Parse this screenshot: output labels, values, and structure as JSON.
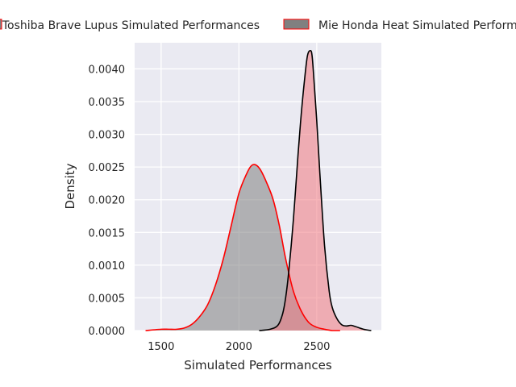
{
  "chart_data": {
    "type": "area",
    "title": "",
    "xlabel": "Simulated Performances",
    "ylabel": "Density",
    "xlim": [
      1330,
      2915
    ],
    "ylim": [
      0,
      0.0044
    ],
    "x_ticks": [
      1500,
      2000,
      2500
    ],
    "x_tick_labels": [
      "1500",
      "2000",
      "2500"
    ],
    "y_ticks": [
      0,
      0.0005,
      0.001,
      0.0015,
      0.002,
      0.0025,
      0.003,
      0.0035,
      0.004
    ],
    "y_tick_labels": [
      "0.0000",
      "0.0005",
      "0.0010",
      "0.0015",
      "0.0020",
      "0.0025",
      "0.0030",
      "0.0035",
      "0.0040"
    ],
    "grid": true,
    "legend_position": "top-center, outside plot",
    "colors": {
      "background": "#eaeaf2",
      "grid": "#ffffff",
      "series1_fill": "#808080",
      "series1_line": "#ff0000",
      "series2_fill": "#f07880",
      "series2_line": "#000000"
    },
    "series": [
      {
        "name": "Toshiba Brave Lupus Simulated Performances",
        "x": [
          1400,
          1500,
          1550,
          1600,
          1650,
          1700,
          1750,
          1800,
          1850,
          1900,
          1950,
          2000,
          2050,
          2080,
          2110,
          2140,
          2180,
          2220,
          2260,
          2300,
          2350,
          2400,
          2450,
          2500,
          2550,
          2600,
          2650
        ],
        "y": [
          0.0,
          2e-05,
          2e-05,
          2e-05,
          4e-05,
          0.0001,
          0.00022,
          0.0004,
          0.0007,
          0.0011,
          0.0016,
          0.0021,
          0.0024,
          0.00252,
          0.00253,
          0.00245,
          0.00225,
          0.002,
          0.0016,
          0.0011,
          0.0006,
          0.0003,
          0.00012,
          5e-05,
          2e-05,
          0.0,
          0.0
        ]
      },
      {
        "name": "Mie Honda Heat Simulated Performances",
        "x": [
          2130,
          2200,
          2250,
          2280,
          2300,
          2320,
          2350,
          2380,
          2400,
          2420,
          2440,
          2460,
          2470,
          2480,
          2500,
          2520,
          2550,
          2580,
          2600,
          2630,
          2660,
          2690,
          2720,
          2750,
          2800,
          2850
        ],
        "y": [
          0.0,
          2e-05,
          8e-05,
          0.00025,
          0.0005,
          0.0009,
          0.0017,
          0.0027,
          0.0033,
          0.0038,
          0.0042,
          0.00428,
          0.0042,
          0.0039,
          0.0032,
          0.0024,
          0.0013,
          0.0006,
          0.00035,
          0.00018,
          9e-05,
          7e-05,
          8e-05,
          6e-05,
          2e-05,
          0.0
        ]
      }
    ]
  }
}
